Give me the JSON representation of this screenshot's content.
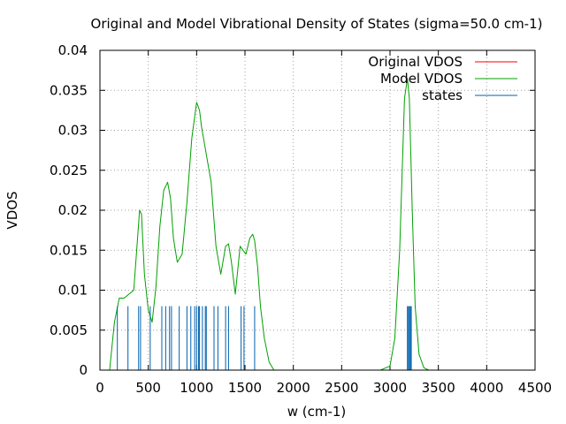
{
  "chart_data": {
    "type": "line",
    "title": "Original and Model Vibrational Density of States (sigma=50.0 cm-1)",
    "xlabel": "w (cm-1)",
    "ylabel": "VDOS",
    "xlim": [
      0,
      4500
    ],
    "ylim": [
      0,
      0.04
    ],
    "x_ticks": [
      "0",
      "500",
      "1000",
      "1500",
      "2000",
      "2500",
      "3000",
      "3500",
      "4000",
      "4500"
    ],
    "y_ticks": [
      "0",
      "0.005",
      "0.01",
      "0.015",
      "0.02",
      "0.025",
      "0.03",
      "0.035",
      "0.04"
    ],
    "grid": true,
    "legend_position": "top-right",
    "colors": {
      "original": "#ff0000",
      "model": "#00a000",
      "states": "#0060ad"
    },
    "series": [
      {
        "name": "Original VDOS",
        "color": "#ff0000",
        "x": [],
        "y": []
      },
      {
        "name": "Model VDOS",
        "color": "#00a000",
        "x": [
          0,
          100,
          150,
          200,
          250,
          300,
          350,
          380,
          410,
          430,
          460,
          500,
          540,
          580,
          620,
          660,
          700,
          730,
          760,
          800,
          850,
          900,
          950,
          1000,
          1030,
          1050,
          1100,
          1150,
          1200,
          1250,
          1300,
          1330,
          1360,
          1400,
          1450,
          1480,
          1510,
          1550,
          1580,
          1600,
          1630,
          1660,
          1700,
          1750,
          1800,
          2000,
          2500,
          2900,
          3000,
          3050,
          3100,
          3150,
          3180,
          3200,
          3230,
          3260,
          3300,
          3350,
          3400,
          3500,
          4500
        ],
        "y": [
          0,
          0,
          0.006,
          0.009,
          0.009,
          0.0095,
          0.01,
          0.015,
          0.02,
          0.0195,
          0.012,
          0.0075,
          0.006,
          0.0105,
          0.018,
          0.0225,
          0.0235,
          0.0215,
          0.0165,
          0.0135,
          0.0145,
          0.021,
          0.029,
          0.0335,
          0.0325,
          0.0305,
          0.027,
          0.0235,
          0.0155,
          0.012,
          0.0155,
          0.0158,
          0.0135,
          0.0095,
          0.0155,
          0.015,
          0.0145,
          0.0165,
          0.017,
          0.0162,
          0.013,
          0.008,
          0.004,
          0.001,
          0,
          0,
          0,
          0,
          0.0005,
          0.004,
          0.015,
          0.034,
          0.0365,
          0.034,
          0.02,
          0.008,
          0.002,
          0.0003,
          0,
          0,
          0
        ]
      },
      {
        "name": "states",
        "color": "#0060ad",
        "type": "impulse",
        "height": 0.008,
        "x": [
          180,
          290,
          400,
          420,
          520,
          640,
          680,
          720,
          740,
          820,
          900,
          940,
          980,
          1000,
          1020,
          1030,
          1060,
          1090,
          1100,
          1180,
          1220,
          1300,
          1330,
          1460,
          1490,
          1600,
          3180,
          3190,
          3200,
          3210,
          3220
        ]
      }
    ]
  }
}
